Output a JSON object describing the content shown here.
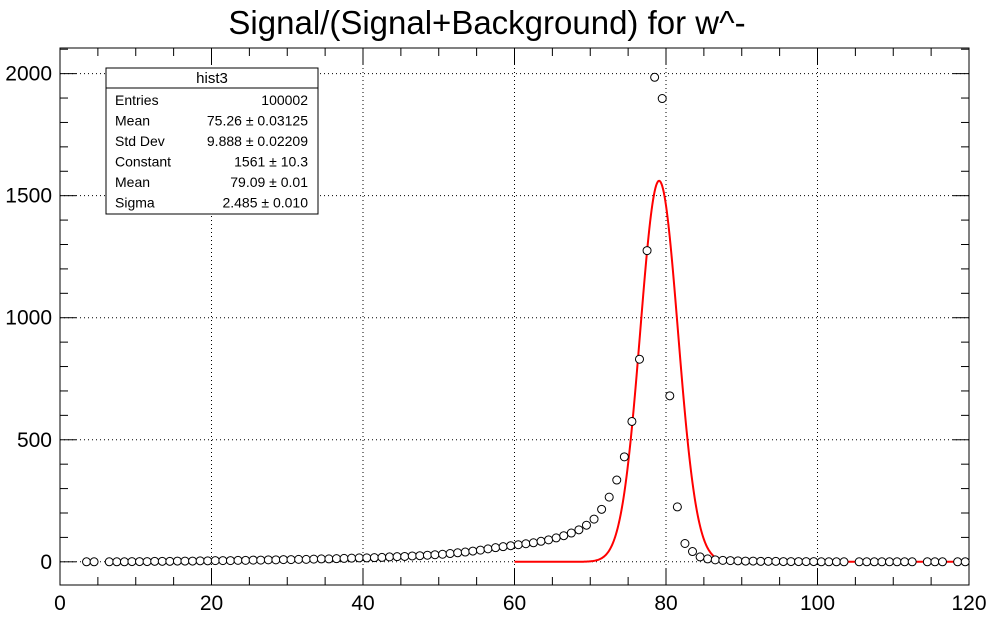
{
  "chart_data": {
    "type": "scatter",
    "title": "Signal/(Signal+Background) for w^-",
    "xlabel": "",
    "ylabel": "",
    "xlim": [
      0,
      120
    ],
    "ylim": [
      -95,
      2105
    ],
    "grid": true,
    "x_ticks": [
      0,
      20,
      40,
      60,
      80,
      100,
      120
    ],
    "y_ticks": [
      0,
      500,
      1000,
      1500,
      2000
    ],
    "x_tick_labels": [
      "0",
      "20",
      "40",
      "60",
      "80",
      "100",
      "120"
    ],
    "y_tick_labels": [
      "0",
      "500",
      "1000",
      "1500",
      "2000"
    ],
    "series": [
      {
        "type": "scatter",
        "marker": "open-circle",
        "color": "#000000",
        "x": [
          3.5,
          4.5,
          6.5,
          7.5,
          8.5,
          9.5,
          10.5,
          11.5,
          12.5,
          13.5,
          14.5,
          15.5,
          16.5,
          17.5,
          18.5,
          19.5,
          20.5,
          21.5,
          22.5,
          23.5,
          24.5,
          25.5,
          26.5,
          27.5,
          28.5,
          29.5,
          30.5,
          31.5,
          32.5,
          33.5,
          34.5,
          35.5,
          36.5,
          37.5,
          38.5,
          39.5,
          40.5,
          41.5,
          42.5,
          43.5,
          44.5,
          45.5,
          46.5,
          47.5,
          48.5,
          49.5,
          50.5,
          51.5,
          52.5,
          53.5,
          54.5,
          55.5,
          56.5,
          57.5,
          58.5,
          59.5,
          60.5,
          61.5,
          62.5,
          63.5,
          64.5,
          65.5,
          66.5,
          67.5,
          68.5,
          69.5,
          70.5,
          71.5,
          72.5,
          73.5,
          74.5,
          75.5,
          76.5,
          77.5,
          78.5,
          79.5,
          80.5,
          81.5,
          82.5,
          83.5,
          84.5,
          85.5,
          86.5,
          87.5,
          88.5,
          89.5,
          90.5,
          91.5,
          92.5,
          93.5,
          94.5,
          95.5,
          96.5,
          97.5,
          98.5,
          99.5,
          100.5,
          101.5,
          102.5,
          103.5,
          105.5,
          106.5,
          107.5,
          108.5,
          109.5,
          110.5,
          111.5,
          112.5,
          114.5,
          115.5,
          116.5,
          118.5,
          119.5
        ],
        "y": [
          0,
          0,
          0,
          0,
          0,
          1,
          1,
          1,
          2,
          2,
          2,
          3,
          3,
          3,
          4,
          4,
          5,
          5,
          5,
          6,
          6,
          7,
          7,
          8,
          8,
          9,
          9,
          10,
          10,
          11,
          12,
          12,
          13,
          14,
          15,
          16,
          16,
          17,
          18,
          20,
          21,
          22,
          24,
          25,
          27,
          29,
          31,
          34,
          37,
          40,
          44,
          48,
          53,
          58,
          62,
          66,
          70,
          74,
          78,
          84,
          90,
          98,
          107,
          118,
          131,
          150,
          175,
          215,
          265,
          335,
          430,
          575,
          830,
          1275,
          1985,
          1898,
          680,
          225,
          75,
          42,
          20,
          12,
          8,
          6,
          5,
          4,
          3,
          3,
          2,
          2,
          2,
          1,
          1,
          1,
          1,
          1,
          0,
          0,
          0,
          0,
          0,
          0,
          0,
          0,
          0,
          0,
          0,
          0,
          0,
          0,
          0,
          0,
          0
        ]
      },
      {
        "type": "line",
        "name": "",
        "color": "#ff0000",
        "function": "gaus",
        "constant": 1561,
        "mean": 79.09,
        "sigma": 2.485,
        "x_range": [
          60,
          120
        ]
      }
    ],
    "stats_box": {
      "title": "hist3",
      "legend_position": "top-left",
      "rows": [
        {
          "label": "Entries",
          "value": "100002"
        },
        {
          "label": "Mean",
          "value": "75.26 ± 0.03125"
        },
        {
          "label": "Std Dev",
          "value": "9.888 ± 0.02209"
        },
        {
          "label": "Constant",
          "value": "1561 ± 10.3"
        },
        {
          "label": "Mean",
          "value": "79.09 ± 0.01"
        },
        {
          "label": "Sigma",
          "value": "2.485 ± 0.010"
        }
      ]
    }
  }
}
